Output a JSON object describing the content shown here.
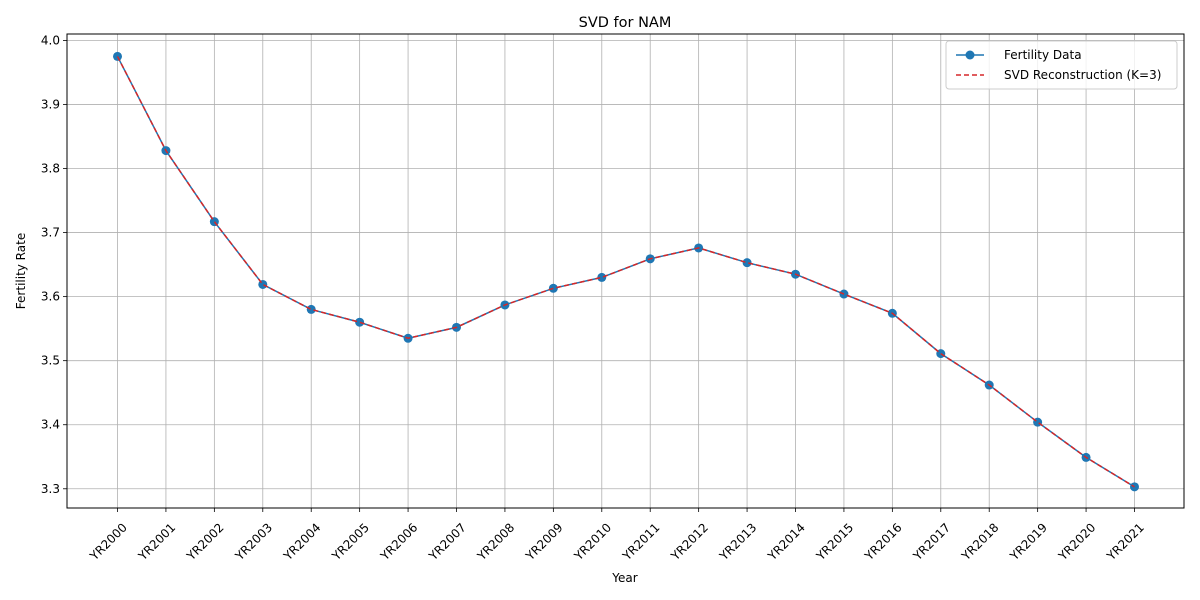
{
  "chart_data": {
    "type": "line",
    "title": "SVD for NAM",
    "xlabel": "Year",
    "ylabel": "Fertility Rate",
    "categories": [
      "YR2000",
      "YR2001",
      "YR2002",
      "YR2003",
      "YR2004",
      "YR2005",
      "YR2006",
      "YR2007",
      "YR2008",
      "YR2009",
      "YR2010",
      "YR2011",
      "YR2012",
      "YR2013",
      "YR2014",
      "YR2015",
      "YR2016",
      "YR2017",
      "YR2018",
      "YR2019",
      "YR2020",
      "YR2021"
    ],
    "ylim": [
      3.27,
      4.01
    ],
    "yticks": [
      "3.3",
      "3.4",
      "3.5",
      "3.6",
      "3.7",
      "3.8",
      "3.9",
      "4.0"
    ],
    "grid": true,
    "legend_position": "top-right",
    "series": [
      {
        "name": "Fertility Data",
        "style": "solid-marker",
        "color": "#1f77b4",
        "values": [
          3.975,
          3.828,
          3.717,
          3.619,
          3.58,
          3.56,
          3.535,
          3.552,
          3.587,
          3.613,
          3.63,
          3.659,
          3.676,
          3.653,
          3.635,
          3.604,
          3.574,
          3.511,
          3.462,
          3.404,
          3.349,
          3.303
        ]
      },
      {
        "name": "SVD Reconstruction (K=3)",
        "style": "dashed",
        "color": "#d62728",
        "values": [
          3.975,
          3.828,
          3.717,
          3.619,
          3.58,
          3.56,
          3.535,
          3.552,
          3.587,
          3.613,
          3.63,
          3.659,
          3.676,
          3.653,
          3.635,
          3.604,
          3.574,
          3.511,
          3.462,
          3.404,
          3.349,
          3.303
        ]
      }
    ]
  }
}
